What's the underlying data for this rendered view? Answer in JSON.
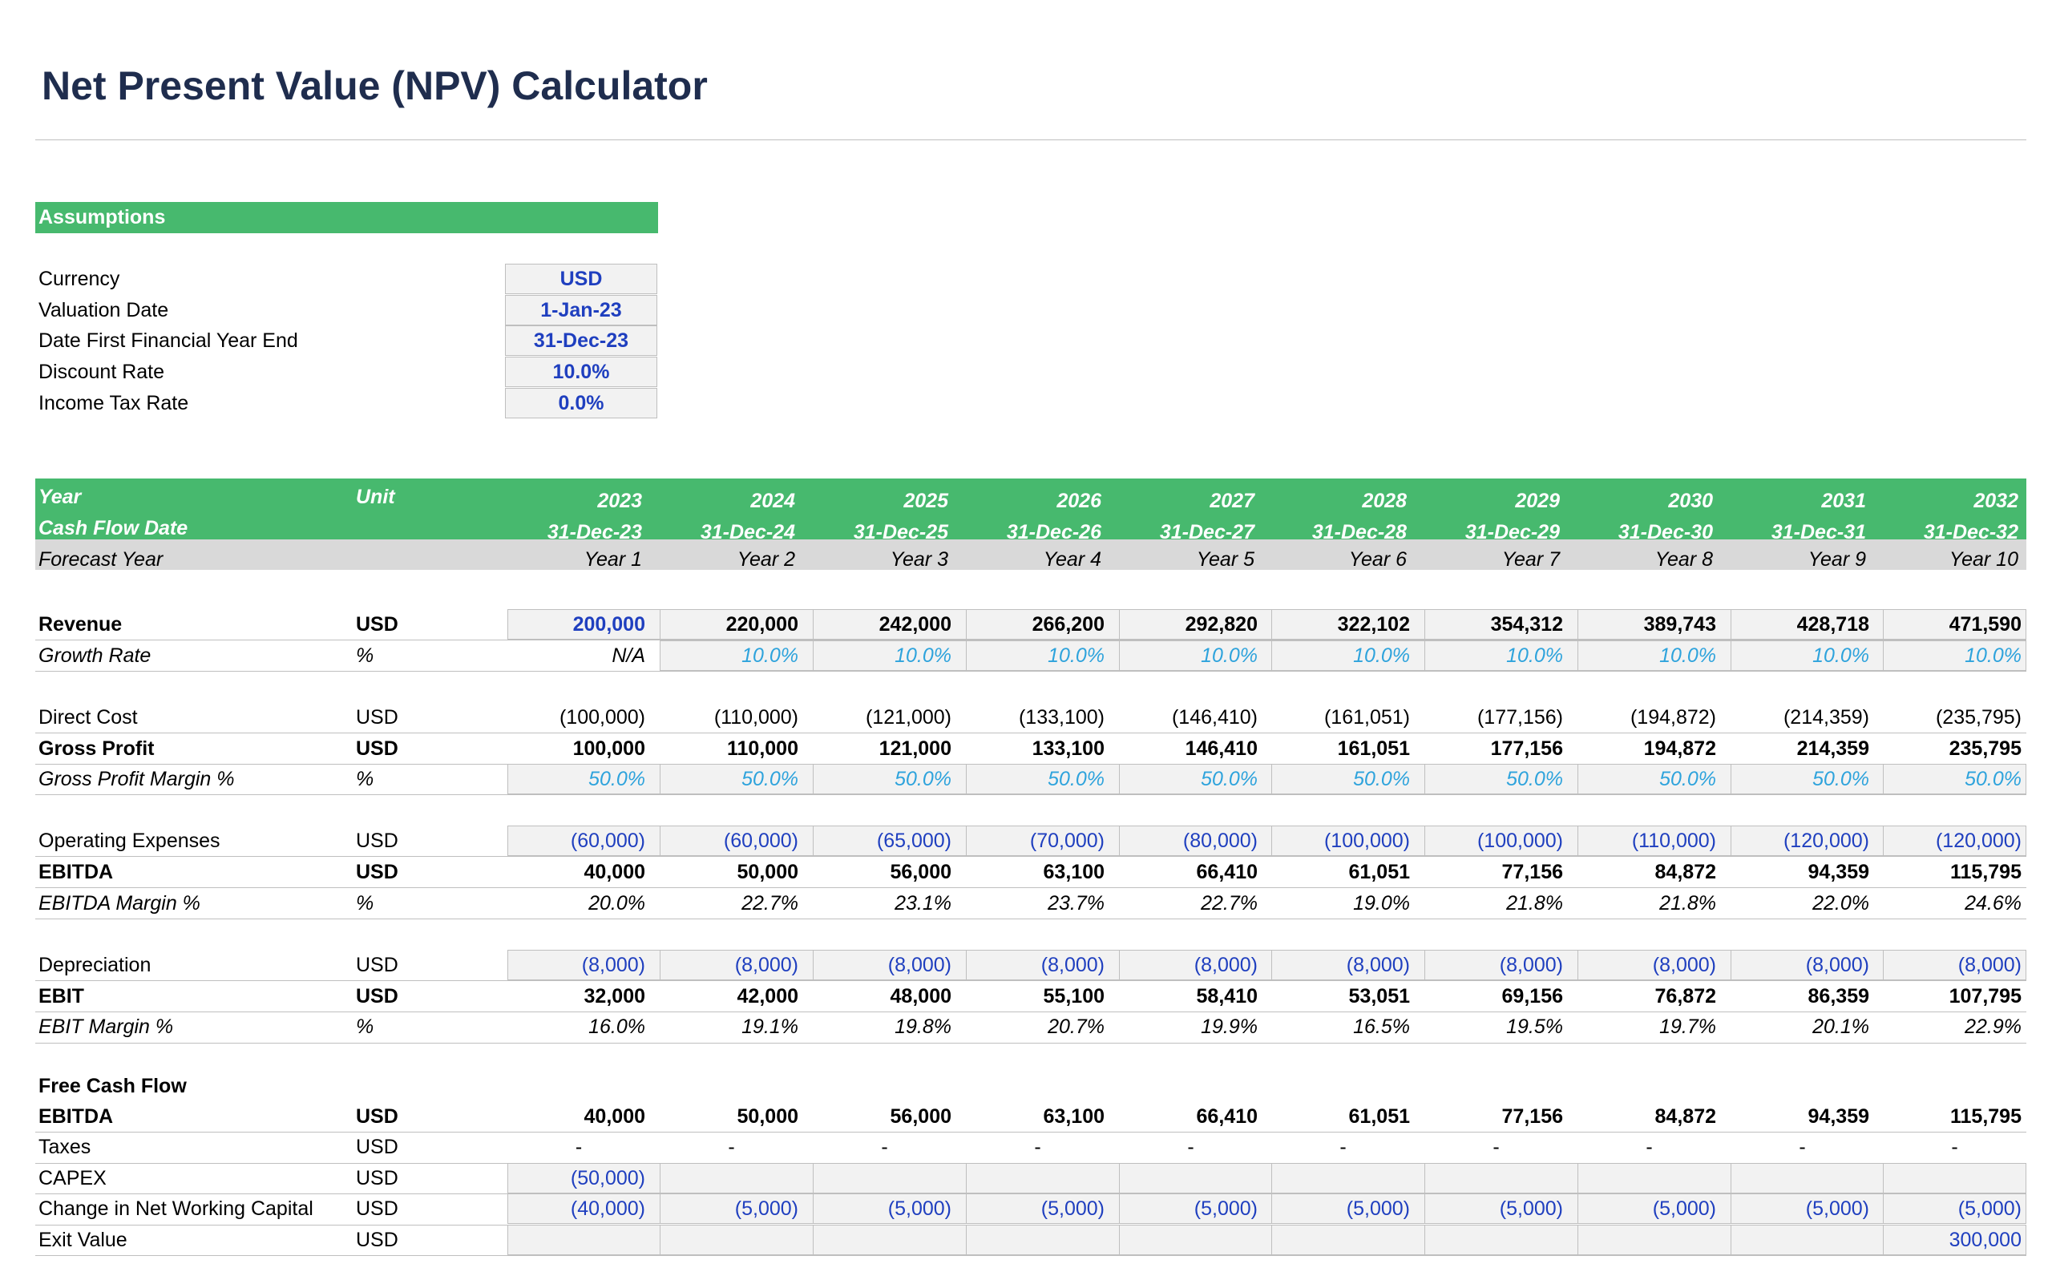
{
  "title": "Net Present Value (NPV) Calculator",
  "colors": {
    "header_green": "#47b96e",
    "input_blue": "#1f3fbf",
    "light_blue": "#2ea3dc",
    "title_navy": "#1f2d4e"
  },
  "assumptions": {
    "header": "Assumptions",
    "rows": [
      {
        "label": "Currency",
        "value": "USD"
      },
      {
        "label": "Valuation Date",
        "value": "1-Jan-23"
      },
      {
        "label": "Date First Financial Year End",
        "value": "31-Dec-23"
      },
      {
        "label": "Discount Rate",
        "value": "10.0%"
      },
      {
        "label": "Income Tax Rate",
        "value": "0.0%"
      }
    ]
  },
  "table": {
    "year_label": "Year",
    "unit_label": "Unit",
    "cfd_label": "Cash Flow Date",
    "forecast_label": "Forecast Year",
    "years": [
      "2023",
      "2024",
      "2025",
      "2026",
      "2027",
      "2028",
      "2029",
      "2030",
      "2031",
      "2032"
    ],
    "dates": [
      "31-Dec-23",
      "31-Dec-24",
      "31-Dec-25",
      "31-Dec-26",
      "31-Dec-27",
      "31-Dec-28",
      "31-Dec-29",
      "31-Dec-30",
      "31-Dec-31",
      "31-Dec-32"
    ],
    "forecast_years": [
      "Year 1",
      "Year 2",
      "Year 3",
      "Year 4",
      "Year 5",
      "Year 6",
      "Year 7",
      "Year 8",
      "Year 9",
      "Year 10"
    ],
    "rows": [
      {
        "label": "Revenue",
        "unit": "USD",
        "values": [
          "200,000",
          "220,000",
          "242,000",
          "266,200",
          "292,820",
          "322,102",
          "354,312",
          "389,743",
          "428,718",
          "471,590"
        ]
      },
      {
        "label": "Growth Rate",
        "unit": "%",
        "values": [
          "N/A",
          "10.0%",
          "10.0%",
          "10.0%",
          "10.0%",
          "10.0%",
          "10.0%",
          "10.0%",
          "10.0%",
          "10.0%"
        ]
      },
      {
        "label": "Direct Cost",
        "unit": "USD",
        "values": [
          "(100,000)",
          "(110,000)",
          "(121,000)",
          "(133,100)",
          "(146,410)",
          "(161,051)",
          "(177,156)",
          "(194,872)",
          "(214,359)",
          "(235,795)"
        ]
      },
      {
        "label": "Gross Profit",
        "unit": "USD",
        "values": [
          "100,000",
          "110,000",
          "121,000",
          "133,100",
          "146,410",
          "161,051",
          "177,156",
          "194,872",
          "214,359",
          "235,795"
        ]
      },
      {
        "label": "Gross Profit Margin %",
        "unit": "%",
        "values": [
          "50.0%",
          "50.0%",
          "50.0%",
          "50.0%",
          "50.0%",
          "50.0%",
          "50.0%",
          "50.0%",
          "50.0%",
          "50.0%"
        ]
      },
      {
        "label": "Operating Expenses",
        "unit": "USD",
        "values": [
          "(60,000)",
          "(60,000)",
          "(65,000)",
          "(70,000)",
          "(80,000)",
          "(100,000)",
          "(100,000)",
          "(110,000)",
          "(120,000)",
          "(120,000)"
        ]
      },
      {
        "label": "EBITDA",
        "unit": "USD",
        "values": [
          "40,000",
          "50,000",
          "56,000",
          "63,100",
          "66,410",
          "61,051",
          "77,156",
          "84,872",
          "94,359",
          "115,795"
        ]
      },
      {
        "label": "EBITDA Margin %",
        "unit": "%",
        "values": [
          "20.0%",
          "22.7%",
          "23.1%",
          "23.7%",
          "22.7%",
          "19.0%",
          "21.8%",
          "21.8%",
          "22.0%",
          "24.6%"
        ]
      },
      {
        "label": "Depreciation",
        "unit": "USD",
        "values": [
          "(8,000)",
          "(8,000)",
          "(8,000)",
          "(8,000)",
          "(8,000)",
          "(8,000)",
          "(8,000)",
          "(8,000)",
          "(8,000)",
          "(8,000)"
        ]
      },
      {
        "label": "EBIT",
        "unit": "USD",
        "values": [
          "32,000",
          "42,000",
          "48,000",
          "55,100",
          "58,410",
          "53,051",
          "69,156",
          "76,872",
          "86,359",
          "107,795"
        ]
      },
      {
        "label": "EBIT Margin %",
        "unit": "%",
        "values": [
          "16.0%",
          "19.1%",
          "19.8%",
          "20.7%",
          "19.9%",
          "16.5%",
          "19.5%",
          "19.7%",
          "20.1%",
          "22.9%"
        ]
      },
      {
        "label": "Free Cash Flow",
        "unit": "",
        "values": []
      },
      {
        "label": "EBITDA",
        "unit": "USD",
        "values": [
          "40,000",
          "50,000",
          "56,000",
          "63,100",
          "66,410",
          "61,051",
          "77,156",
          "84,872",
          "94,359",
          "115,795"
        ]
      },
      {
        "label": "Taxes",
        "unit": "USD",
        "values": [
          "-",
          "-",
          "-",
          "-",
          "-",
          "-",
          "-",
          "-",
          "-",
          "-"
        ]
      },
      {
        "label": "CAPEX",
        "unit": "USD",
        "values": [
          "(50,000)",
          "",
          "",
          "",
          "",
          "",
          "",
          "",
          "",
          ""
        ]
      },
      {
        "label": "Change in Net Working Capital",
        "unit": "USD",
        "values": [
          "(40,000)",
          "(5,000)",
          "(5,000)",
          "(5,000)",
          "(5,000)",
          "(5,000)",
          "(5,000)",
          "(5,000)",
          "(5,000)",
          "(5,000)"
        ]
      },
      {
        "label": "Exit Value",
        "unit": "USD",
        "values": [
          "",
          "",
          "",
          "",
          "",
          "",
          "",
          "",
          "",
          "300,000"
        ]
      }
    ]
  }
}
